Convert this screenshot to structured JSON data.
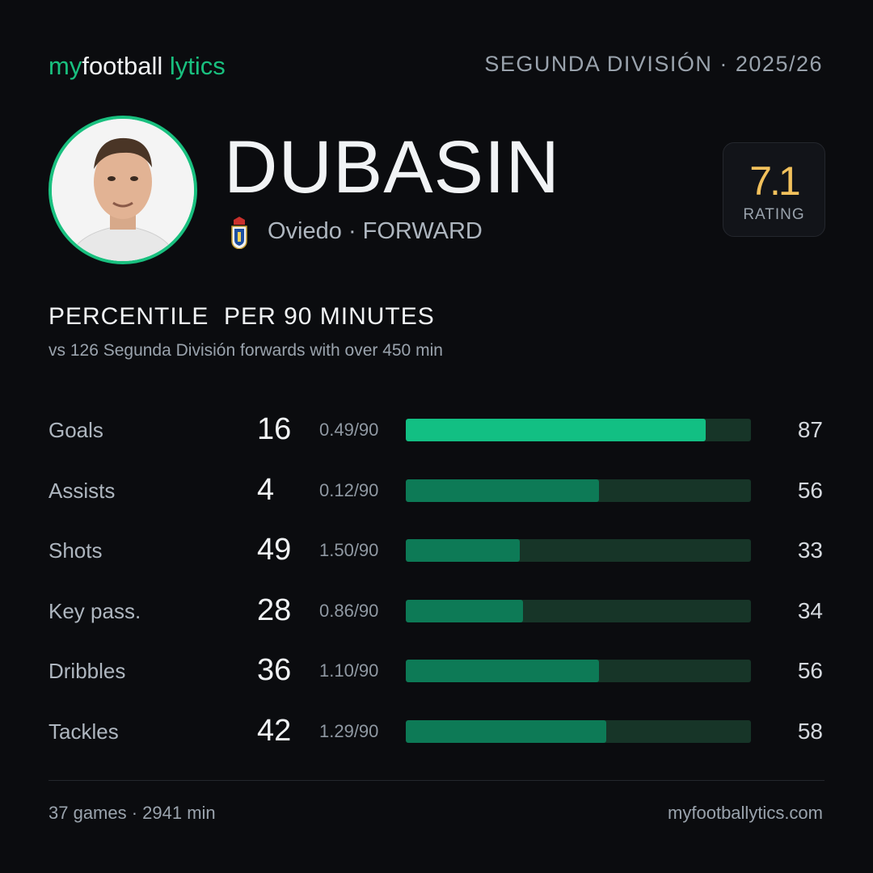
{
  "header": {
    "brand": [
      "my",
      "football",
      "lytics"
    ],
    "competition": "SEGUNDA DIVISIÓN · 2025/26"
  },
  "player": {
    "name": "DUBASIN",
    "team_position": "Oviedo · FORWARD",
    "rating": 7.1,
    "rating_label": "RATING"
  },
  "section": {
    "title": "PERCENTILE  PER 90 MINUTES",
    "subtitle": "vs 126 Segunda División forwards with over 450 min"
  },
  "stats": [
    {
      "label": "Goals",
      "total": 16,
      "per90": "0.49/90",
      "percentile": 87,
      "color": "#12bf83"
    },
    {
      "label": "Assists",
      "total": 4,
      "per90": "0.12/90",
      "percentile": 56,
      "color": "#0d7a56"
    },
    {
      "label": "Shots",
      "total": 49,
      "per90": "1.50/90",
      "percentile": 33,
      "color": "#0d7a56"
    },
    {
      "label": "Key pass.",
      "total": 28,
      "per90": "0.86/90",
      "percentile": 34,
      "color": "#0d7a56"
    },
    {
      "label": "Dribbles",
      "total": 36,
      "per90": "1.10/90",
      "percentile": 56,
      "color": "#0d7a56"
    },
    {
      "label": "Tackles",
      "total": 42,
      "per90": "1.29/90",
      "percentile": 58,
      "color": "#0d7a56"
    }
  ],
  "footer": {
    "summary": "37 games · 2941 min",
    "site": "myfootballytics.com"
  }
}
